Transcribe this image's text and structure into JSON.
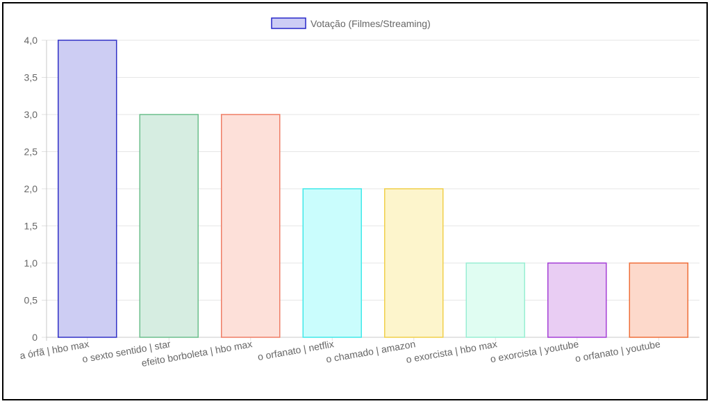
{
  "chart_data": {
    "type": "bar",
    "categories": [
      "a órfã | hbo max",
      "o sexto sentido | star",
      "efeito borboleta | hbo max",
      "o orfanato | netflix",
      "o chamado | amazon",
      "o exorcista | hbo max",
      "o exorcista | youtube",
      "o orfanato | youtube"
    ],
    "series": [
      {
        "name": "Votação (Filmes/Streaming)",
        "values": [
          4,
          3,
          3,
          2,
          2,
          1,
          1,
          1
        ]
      }
    ],
    "yticks": [
      "0",
      "0,5",
      "1,0",
      "1,5",
      "2,0",
      "2,5",
      "3,0",
      "3,5",
      "4,0"
    ],
    "ylim": [
      0,
      4
    ],
    "grid": true,
    "legend_position": "top-center",
    "legend_colors": {
      "fill": "#cdcdf5",
      "stroke": "#2626c9"
    },
    "bar_colors": [
      {
        "fill": "#cdcdf3",
        "stroke": "#3030c6"
      },
      {
        "fill": "#d6ede1",
        "stroke": "#6cbf8c"
      },
      {
        "fill": "#fde0d9",
        "stroke": "#ef7d65"
      },
      {
        "fill": "#cafdfd",
        "stroke": "#40e9e9"
      },
      {
        "fill": "#fdf5cc",
        "stroke": "#f0cf4a"
      },
      {
        "fill": "#e0fdf2",
        "stroke": "#98eed3"
      },
      {
        "fill": "#e9cdf3",
        "stroke": "#a43fd6"
      },
      {
        "fill": "#fdd9cb",
        "stroke": "#ef6f3a"
      }
    ]
  }
}
